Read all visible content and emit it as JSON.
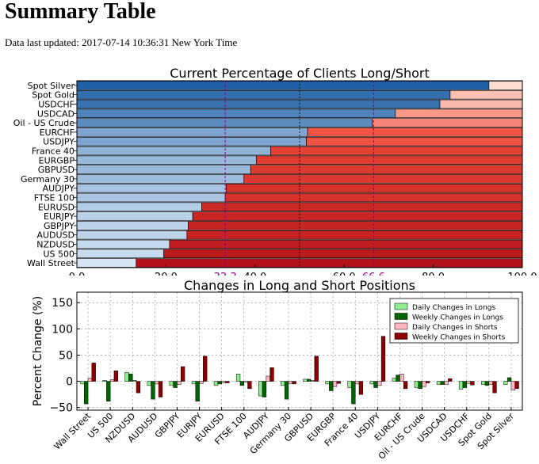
{
  "page": {
    "title": "Summary Table",
    "updated_prefix": "Data last updated:",
    "updated_value": "2017-07-14 10:36:31 New York Time"
  },
  "chart_data": [
    {
      "type": "bar",
      "orientation": "horizontal-stacked",
      "title": "Current Percentage of Clients Long/Short",
      "categories": [
        "Spot Silver",
        "Spot Gold",
        "USDCHF",
        "USDCAD",
        "Oil - US Crude",
        "EURCHF",
        "USDJPY",
        "France 40",
        "EURGBP",
        "GBPUSD",
        "Germany 30",
        "AUDJPY",
        "FTSE 100",
        "EURUSD",
        "EURJPY",
        "GBPJPY",
        "AUDUSD",
        "NZDUSD",
        "US 500",
        "Wall Street"
      ],
      "series": [
        {
          "values": [
            92.5,
            83.8,
            81.5,
            71.5,
            66.3,
            51.8,
            51.5,
            43.5,
            40.3,
            39.0,
            37.5,
            33.5,
            33.3,
            28.0,
            26.0,
            25.0,
            24.7,
            20.8,
            19.5,
            13.3
          ]
        },
        {
          "values": [
            7.5,
            16.2,
            18.5,
            28.5,
            33.7,
            48.2,
            48.5,
            56.5,
            59.7,
            61.0,
            62.5,
            66.5,
            66.7,
            72.0,
            74.0,
            75.0,
            75.3,
            79.2,
            80.5,
            86.7
          ]
        }
      ],
      "xlim": [
        0,
        100
      ],
      "xticks": [
        "0.0",
        "20.0",
        "40.0",
        "60.0",
        "80.0",
        "100.0"
      ],
      "xticks_highlight": [
        "33.3",
        "66.6"
      ],
      "reference_lines": [
        33.3,
        66.6
      ],
      "colors": {
        "highlight": "#8b008b",
        "long_dark": "#1f5fa6",
        "long_light": "#d6e6f5",
        "short_light": "#fde0d2",
        "short_mid": "#ef4a3a",
        "short_dark": "#b11217"
      }
    },
    {
      "type": "bar",
      "title": "Changes in Long and Short Positions",
      "ylabel": "Percent Change (%)",
      "ylim": [
        -55,
        170
      ],
      "yticks": [
        "150",
        "100",
        "50",
        "0",
        "−50"
      ],
      "grid": true,
      "legend_position": "top-right",
      "categories": [
        "Wall Street",
        "US 500",
        "NZDUSD",
        "AUDUSD",
        "GBPJPY",
        "EURJPY",
        "EURUSD",
        "FTSE 100",
        "AUDJPY",
        "Germany 30",
        "GBPUSD",
        "EURGBP",
        "France 40",
        "USDJPY",
        "EURCHF",
        "Oil - US Crude",
        "USDCAD",
        "USDCHF",
        "Spot Gold",
        "Spot Silver"
      ],
      "series": [
        {
          "name": "Daily Changes in Longs",
          "color": "#90ee90",
          "values": [
            -5,
            2,
            17,
            -8,
            -8,
            -5,
            -8,
            14,
            -28,
            -8,
            4,
            -5,
            -12,
            -5,
            6,
            -12,
            -6,
            -15,
            -6,
            -6
          ]
        },
        {
          "name": "Weekly Changes in Longs",
          "color": "#006400",
          "values": [
            -43,
            -38,
            14,
            -34,
            -12,
            -38,
            -5,
            -8,
            -30,
            -34,
            4,
            -18,
            -43,
            -12,
            12,
            -14,
            -6,
            -12,
            -8,
            7
          ]
        },
        {
          "name": "Daily Changes in Shorts",
          "color": "#ffb6c1",
          "values": [
            6,
            3,
            2,
            -5,
            -6,
            -4,
            -3,
            -2,
            10,
            -4,
            2,
            -10,
            -5,
            -8,
            14,
            -10,
            -6,
            -4,
            -6,
            -17
          ]
        },
        {
          "name": "Weekly Changes in Shorts",
          "color": "#8b0000",
          "values": [
            35,
            20,
            -22,
            -30,
            28,
            48,
            -3,
            -14,
            26,
            -5,
            48,
            -4,
            -25,
            86,
            -14,
            -3,
            5,
            -7,
            -22,
            -14
          ]
        }
      ]
    }
  ]
}
